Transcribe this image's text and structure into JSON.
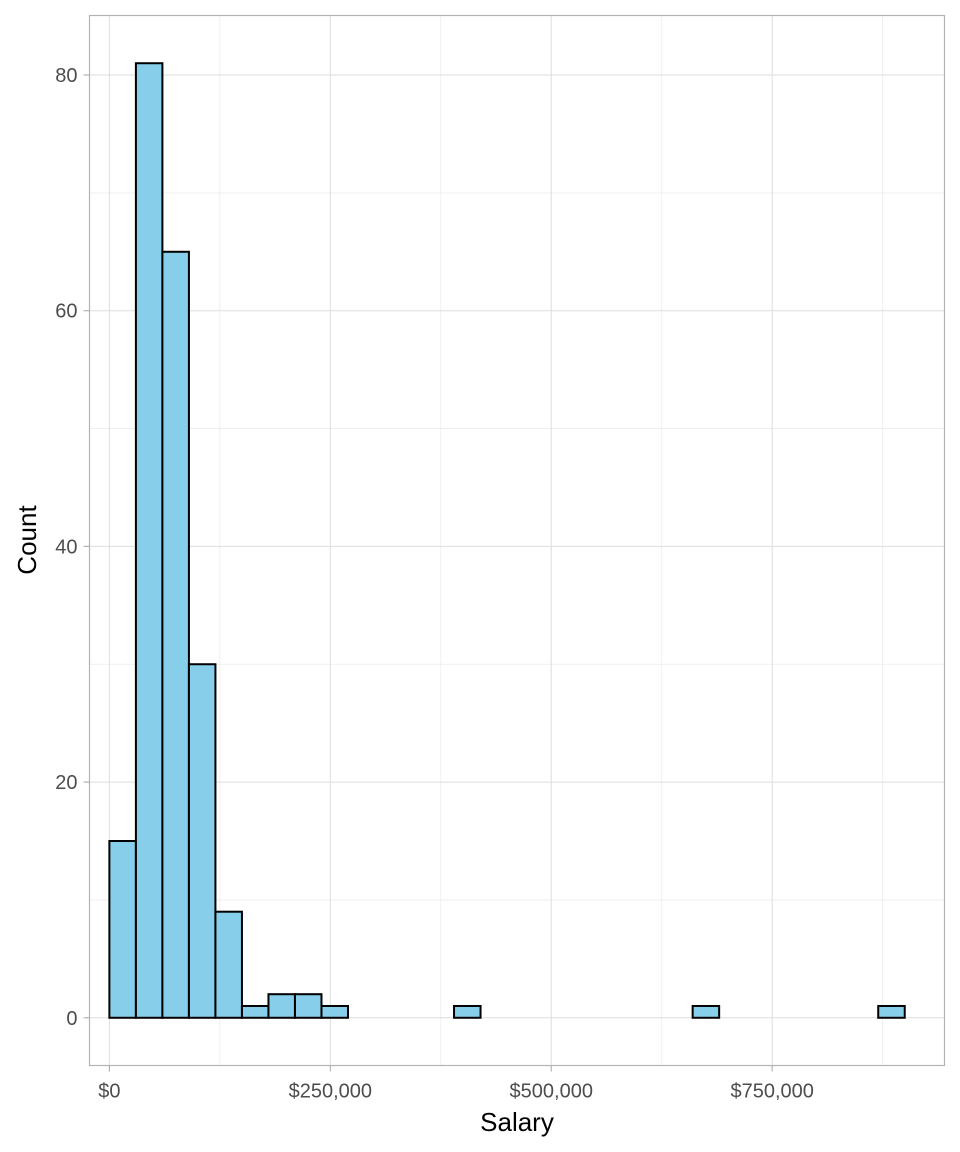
{
  "chart_data": {
    "type": "bar",
    "title": "",
    "xlabel": "Salary",
    "ylabel": "Count",
    "bin_width": 30000,
    "bins": [
      {
        "x0": 0,
        "x1": 30000,
        "count": 15
      },
      {
        "x0": 30000,
        "x1": 60000,
        "count": 81
      },
      {
        "x0": 60000,
        "x1": 90000,
        "count": 65
      },
      {
        "x0": 90000,
        "x1": 120000,
        "count": 30
      },
      {
        "x0": 120000,
        "x1": 150000,
        "count": 9
      },
      {
        "x0": 150000,
        "x1": 180000,
        "count": 1
      },
      {
        "x0": 180000,
        "x1": 210000,
        "count": 2
      },
      {
        "x0": 210000,
        "x1": 240000,
        "count": 2
      },
      {
        "x0": 240000,
        "x1": 270000,
        "count": 1
      },
      {
        "x0": 270000,
        "x1": 300000,
        "count": 0
      },
      {
        "x0": 300000,
        "x1": 330000,
        "count": 0
      },
      {
        "x0": 330000,
        "x1": 360000,
        "count": 0
      },
      {
        "x0": 360000,
        "x1": 390000,
        "count": 0
      },
      {
        "x0": 390000,
        "x1": 420000,
        "count": 1
      },
      {
        "x0": 420000,
        "x1": 450000,
        "count": 0
      },
      {
        "x0": 450000,
        "x1": 480000,
        "count": 0
      },
      {
        "x0": 480000,
        "x1": 510000,
        "count": 0
      },
      {
        "x0": 510000,
        "x1": 540000,
        "count": 0
      },
      {
        "x0": 540000,
        "x1": 570000,
        "count": 0
      },
      {
        "x0": 570000,
        "x1": 600000,
        "count": 0
      },
      {
        "x0": 600000,
        "x1": 630000,
        "count": 0
      },
      {
        "x0": 630000,
        "x1": 660000,
        "count": 0
      },
      {
        "x0": 660000,
        "x1": 690000,
        "count": 1
      },
      {
        "x0": 690000,
        "x1": 720000,
        "count": 0
      },
      {
        "x0": 720000,
        "x1": 750000,
        "count": 0
      },
      {
        "x0": 750000,
        "x1": 780000,
        "count": 0
      },
      {
        "x0": 780000,
        "x1": 810000,
        "count": 0
      },
      {
        "x0": 810000,
        "x1": 840000,
        "count": 0
      },
      {
        "x0": 840000,
        "x1": 870000,
        "count": 0
      },
      {
        "x0": 870000,
        "x1": 900000,
        "count": 1
      }
    ],
    "xlim": [
      -22500,
      945000
    ],
    "ylim": [
      -4.05,
      85.05
    ],
    "x_ticks": [
      {
        "value": 0,
        "label": "$0"
      },
      {
        "value": 250000,
        "label": "$250,000"
      },
      {
        "value": 500000,
        "label": "$500,000"
      },
      {
        "value": 750000,
        "label": "$750,000"
      }
    ],
    "x_minor_ticks": [
      125000,
      375000,
      625000,
      875000
    ],
    "y_ticks": [
      {
        "value": 0,
        "label": "0"
      },
      {
        "value": 20,
        "label": "20"
      },
      {
        "value": 40,
        "label": "40"
      },
      {
        "value": 60,
        "label": "60"
      },
      {
        "value": 80,
        "label": "80"
      }
    ],
    "y_minor_ticks": [
      10,
      30,
      50,
      70
    ],
    "grid": true,
    "legend": "none",
    "colors": {
      "bar_fill": "#87ceeb",
      "bar_outline": "#000000",
      "grid": "#dedede",
      "panel_border": "#b3b3b3"
    }
  }
}
